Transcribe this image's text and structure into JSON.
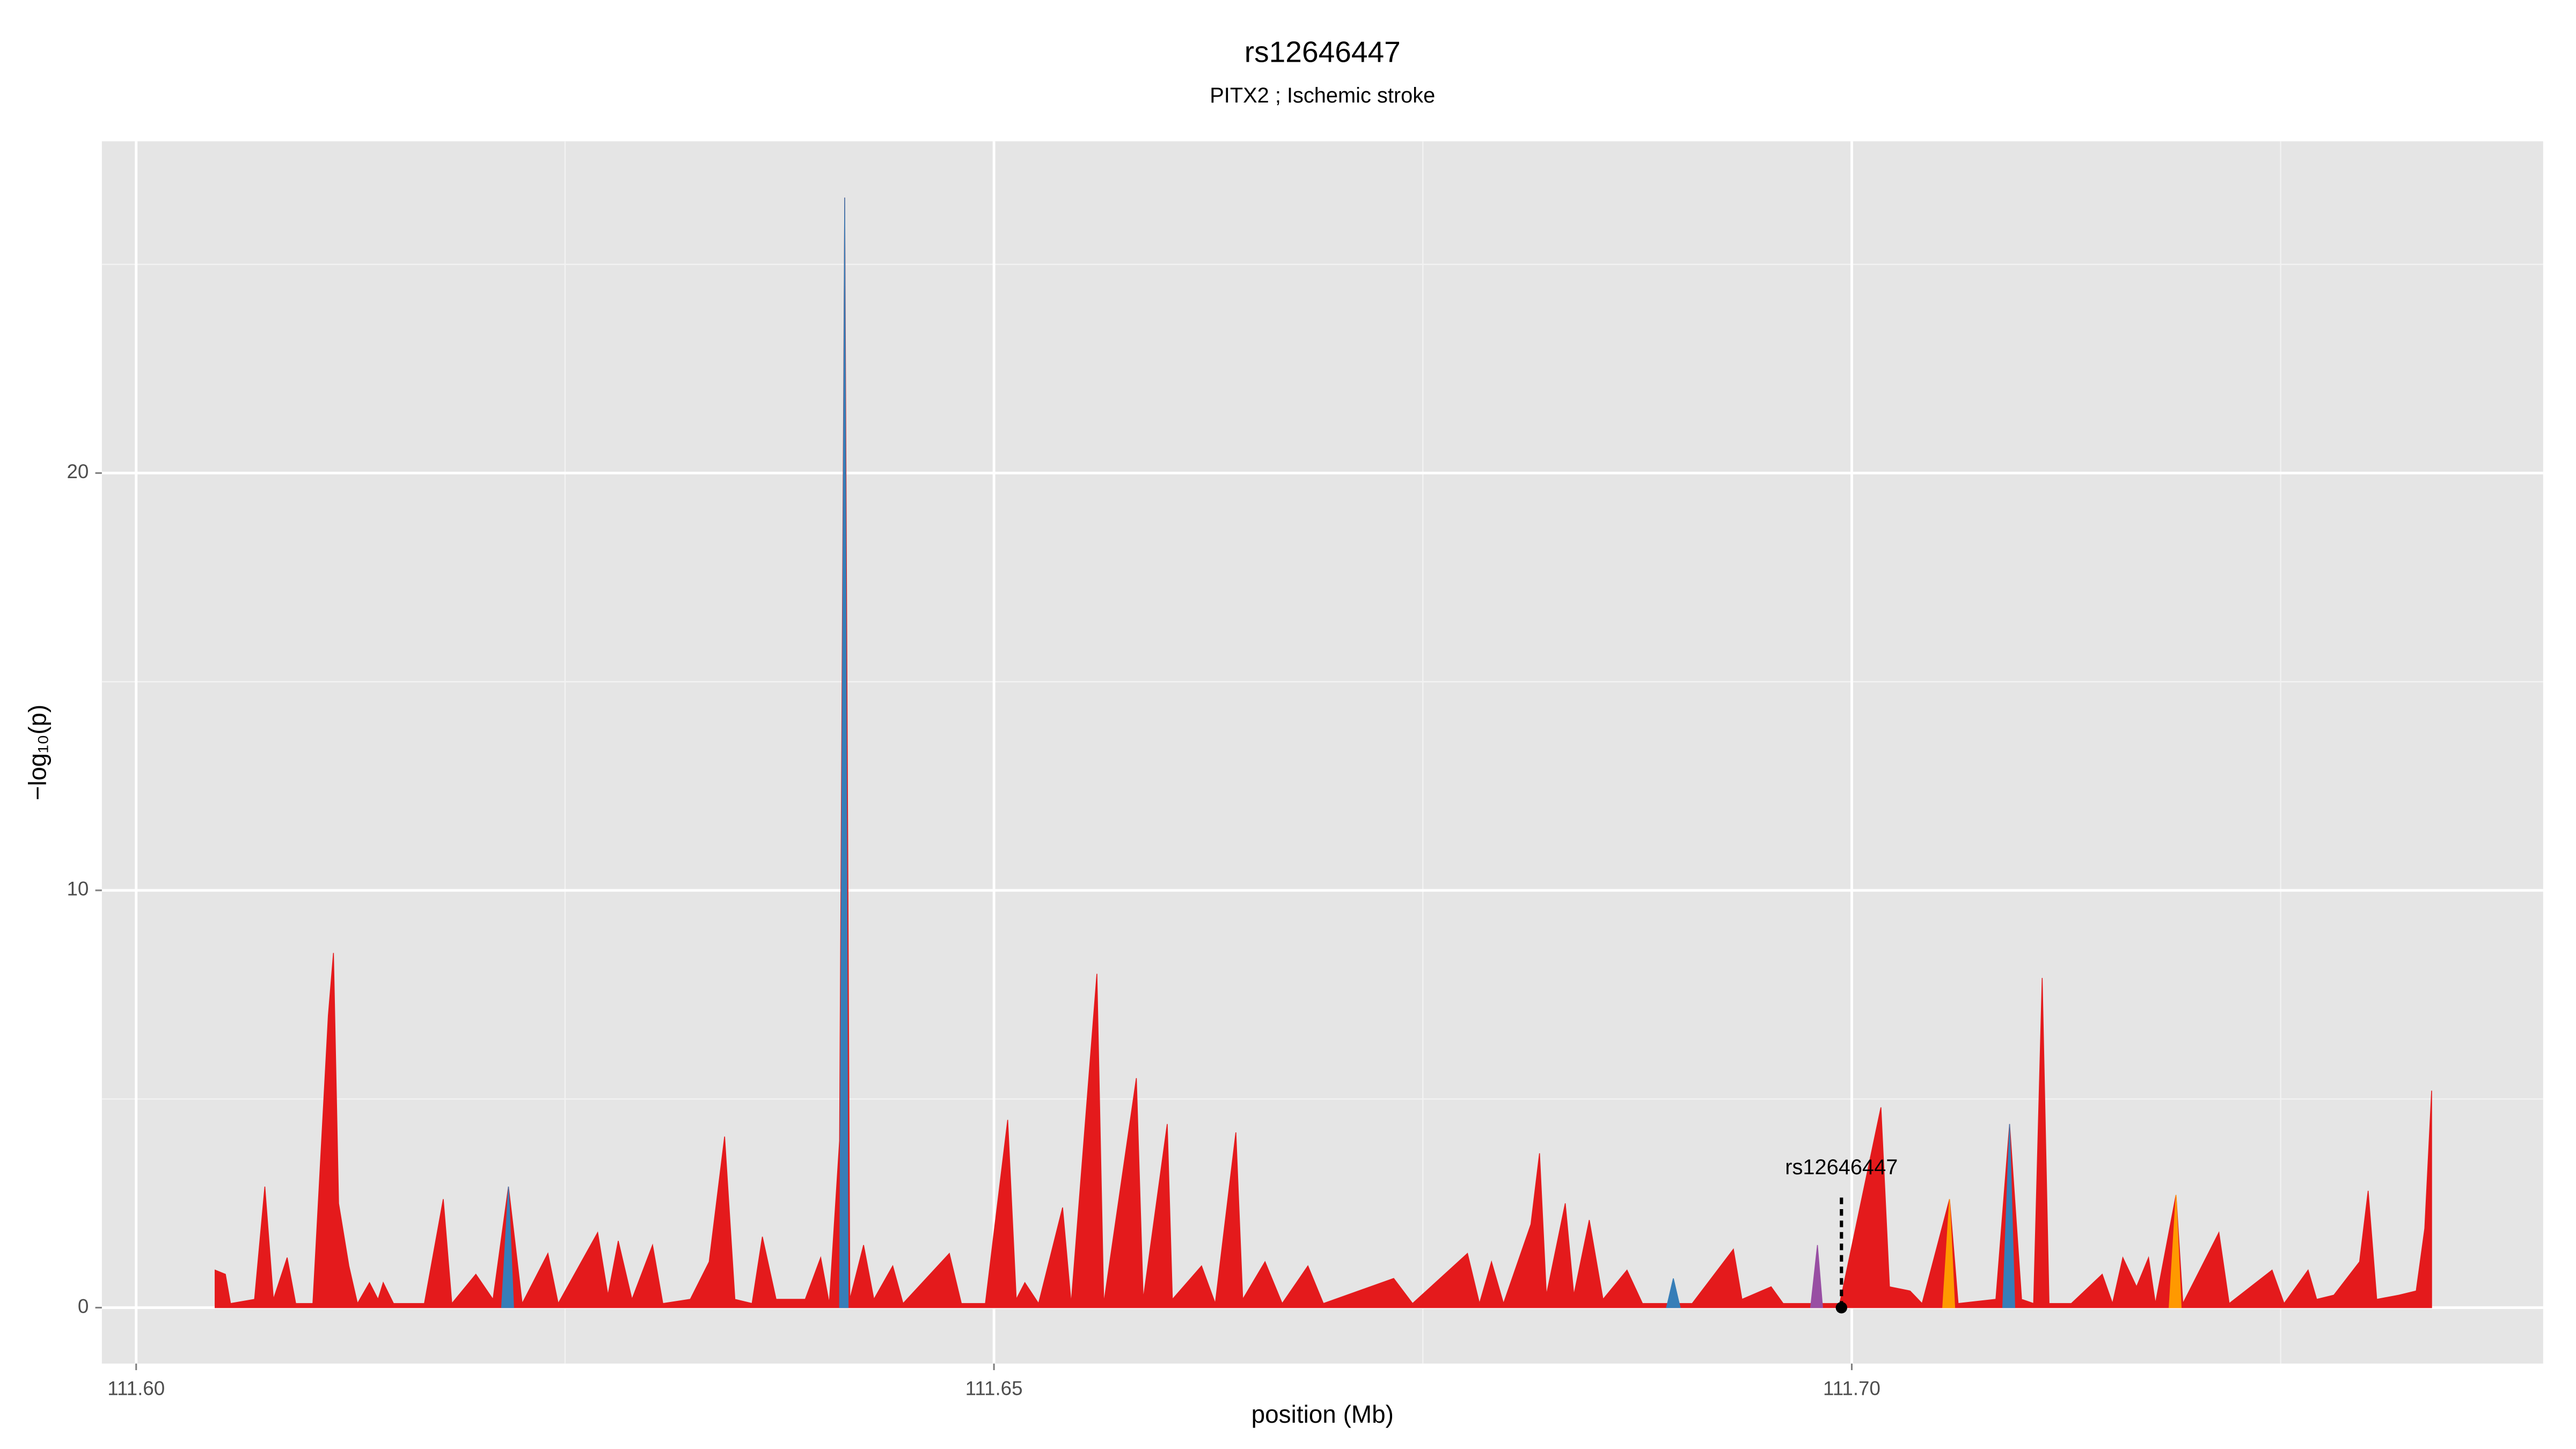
{
  "chart_data": {
    "type": "area",
    "title": "rs12646447",
    "subtitle": "PITX2 ; Ischemic stroke",
    "x_label": "position (Mb)",
    "y_label": "−log₁₀(p)",
    "xlim": [
      111.598,
      111.7403
    ],
    "ylim": [
      -1.34,
      27.95
    ],
    "xticks": [
      {
        "value": 111.6,
        "label": "111.60"
      },
      111.65,
      {
        "value": 111.7,
        "label": "111.70"
      }
    ],
    "yticks": [
      0,
      10,
      20
    ],
    "x_minor_grid": [
      111.625,
      111.675,
      111.725
    ],
    "y_minor_grid": [
      5,
      15,
      25
    ],
    "grid": true,
    "panel_color": "#e5e5e5",
    "series": [
      {
        "color": "#e41a1c",
        "x": [
          111.6046,
          111.6052,
          111.6055,
          111.6069,
          111.6075,
          111.608,
          111.6088,
          111.6093,
          111.6103,
          111.6112,
          111.6115,
          111.6118,
          111.6124,
          111.6129,
          111.6136,
          111.6141,
          111.6144,
          111.615,
          111.6168,
          111.6179,
          111.6184,
          111.6198,
          111.6208,
          111.6217,
          111.6225,
          111.624,
          111.6246,
          111.6269,
          111.6275,
          111.6281,
          111.6289,
          111.6301,
          111.6307,
          111.6323,
          111.6334,
          111.6343,
          111.6349,
          111.6359,
          111.6365,
          111.6373,
          111.639,
          111.6399,
          111.6404,
          111.641,
          111.6413,
          111.6416,
          111.6424,
          111.643,
          111.6441,
          111.6447,
          111.6474,
          111.6481,
          111.6495,
          111.6508,
          111.6513,
          111.6518,
          111.6526,
          111.654,
          111.6545,
          111.656,
          111.6564,
          111.6583,
          111.6587,
          111.6601,
          111.6604,
          111.6621,
          111.6629,
          111.6641,
          111.6645,
          111.6658,
          111.6668,
          111.6683,
          111.6692,
          111.6733,
          111.6744,
          111.6776,
          111.6783,
          111.679,
          111.6797,
          111.6813,
          111.6818,
          111.6822,
          111.6833,
          111.6838,
          111.6847,
          111.6855,
          111.6869,
          111.6878,
          111.6907,
          111.6931,
          111.6936,
          111.6953,
          111.696,
          111.6993,
          111.7017,
          111.7022,
          111.7034,
          111.7041,
          111.7057,
          111.7062,
          111.7084,
          111.7092,
          111.7099,
          111.7106,
          111.7111,
          111.7115,
          111.7128,
          111.7146,
          111.7152,
          111.7158,
          111.7166,
          111.7173,
          111.7177,
          111.7189,
          111.7193,
          111.7214,
          111.722,
          111.7245,
          111.7252,
          111.7266,
          111.7271,
          111.7281,
          111.7296,
          111.7301,
          111.7306,
          111.7319,
          111.7329,
          111.7334,
          111.7338
        ],
        "values": [
          0.9,
          0.8,
          0.1,
          0.2,
          2.9,
          0.2,
          1.2,
          0.1,
          0.1,
          7,
          8.5,
          2.5,
          1,
          0.1,
          0.6,
          0.2,
          0.6,
          0.1,
          0.1,
          2.6,
          0.1,
          0.8,
          0.2,
          2.9,
          0.1,
          1.3,
          0.1,
          1.8,
          0.3,
          1.6,
          0.2,
          1.5,
          0.1,
          0.2,
          1.1,
          4.1,
          0.2,
          0.1,
          1.7,
          0.2,
          0.2,
          1.2,
          0.1,
          4,
          26.6,
          0.2,
          1.5,
          0.2,
          1,
          0.1,
          1.3,
          0.1,
          0.1,
          4.5,
          0.2,
          0.6,
          0.1,
          2.4,
          0.1,
          8,
          0.1,
          5.5,
          0.2,
          4.4,
          0.2,
          1,
          0.1,
          4.2,
          0.2,
          1.1,
          0.1,
          1,
          0.1,
          0.7,
          0.1,
          1.3,
          0.1,
          1.1,
          0.1,
          2,
          3.7,
          0.3,
          2.5,
          0.3,
          2.1,
          0.2,
          0.9,
          0.1,
          0.1,
          1.4,
          0.2,
          0.5,
          0.1,
          0.1,
          4.8,
          0.5,
          0.4,
          0.1,
          2.6,
          0.1,
          0.2,
          4.4,
          0.2,
          0.1,
          7.9,
          0.1,
          0.1,
          0.8,
          0.1,
          1.2,
          0.5,
          1.2,
          0.1,
          2.7,
          0.1,
          1.8,
          0.1,
          0.9,
          0.1,
          0.9,
          0.2,
          0.3,
          1.1,
          2.8,
          0.2,
          0.3,
          0.4,
          1.9,
          5.2
        ]
      },
      {
        "color": "#377eb8",
        "x": [
          111.6213,
          111.6217,
          111.622,
          null,
          111.641,
          111.6413,
          111.6415,
          null,
          111.6892,
          111.6896,
          111.69,
          null,
          111.7088,
          111.7092,
          111.7095
        ],
        "values": [
          0,
          2.9,
          0,
          null,
          0,
          26.6,
          0,
          null,
          0,
          0.7,
          0,
          null,
          0,
          4.4,
          0
        ]
      },
      {
        "color": "#ff9900",
        "x": [
          111.7053,
          111.7057,
          111.706,
          null,
          111.7185,
          111.7189,
          111.7192
        ],
        "values": [
          0,
          2.6,
          0,
          null,
          0,
          2.7,
          0
        ]
      },
      {
        "color": "#984ea3",
        "x": [
          111.6976,
          111.698,
          111.6983
        ],
        "values": [
          0,
          1.5,
          0
        ]
      }
    ],
    "annotation": {
      "label": "rs12646447",
      "x": 111.6994,
      "y": 0,
      "line_top": 2.7
    }
  }
}
